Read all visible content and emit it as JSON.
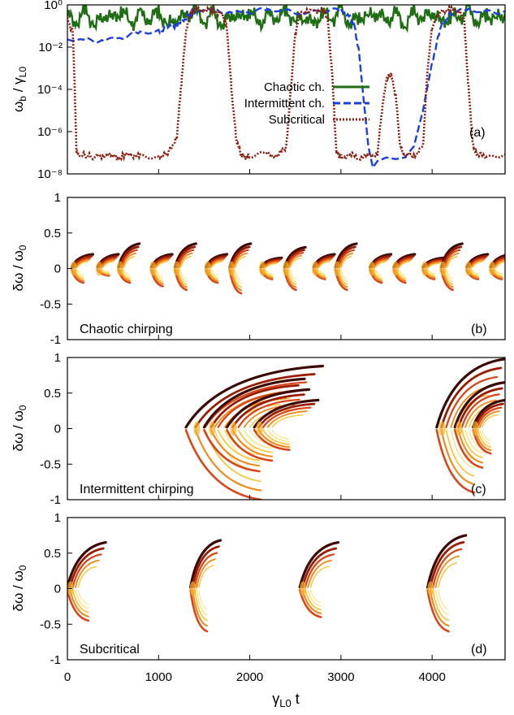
{
  "figure": {
    "xlabel": "γ",
    "xlabel_sub": "L0",
    "xlabel_tail": " t",
    "xticks": [
      "0",
      "1000",
      "2000",
      "3000",
      "4000"
    ]
  },
  "chart_data": [
    {
      "type": "line",
      "panel_tag": "(a)",
      "yscale": "log",
      "ylabel": "ω_b / γ_L0",
      "xlim": [
        0,
        4800
      ],
      "ylim": [
        1e-08,
        1
      ],
      "yticks": [
        "10⁰",
        "10⁻²",
        "10⁻⁴",
        "10⁻⁶",
        "10⁻⁸"
      ],
      "legend_position": "center-right",
      "series": [
        {
          "name": "Chaotic ch.",
          "color": "#1f6e14",
          "style": "solid",
          "x": [
            0,
            100,
            200,
            300,
            400,
            500,
            600,
            700,
            800,
            900,
            1000,
            1100,
            1200,
            1300,
            1400,
            1500,
            1600,
            1700,
            1800,
            1900,
            2000,
            2100,
            2200,
            2300,
            2400,
            2500,
            2600,
            2700,
            2800,
            2900,
            3000,
            3100,
            3200,
            3300,
            3400,
            3500,
            3600,
            3700,
            3800,
            3900,
            4000,
            4100,
            4200,
            4300,
            4400,
            4500,
            4600,
            4700,
            4800
          ],
          "y": [
            0.3,
            0.15,
            0.5,
            0.1,
            0.4,
            0.2,
            0.6,
            0.12,
            0.35,
            0.2,
            0.5,
            0.09,
            0.3,
            0.25,
            0.55,
            0.15,
            0.4,
            0.1,
            0.45,
            0.2,
            0.6,
            0.12,
            0.3,
            0.25,
            0.5,
            0.15,
            0.35,
            0.1,
            0.45,
            0.2,
            0.55,
            0.12,
            0.3,
            0.25,
            0.5,
            0.15,
            0.4,
            0.1,
            0.45,
            0.2,
            0.6,
            0.12,
            0.3,
            0.25,
            0.5,
            0.15,
            0.35,
            0.2,
            0.4
          ]
        },
        {
          "name": "Intermittent ch.",
          "color": "#1a3fe0",
          "style": "dashed",
          "x": [
            0,
            200,
            400,
            600,
            800,
            1000,
            1100,
            1200,
            1300,
            1350,
            1400,
            1600,
            1800,
            2000,
            2200,
            2400,
            2600,
            2800,
            3000,
            3100,
            3150,
            3200,
            3250,
            3300,
            3350,
            3400,
            3500,
            3600,
            3700,
            3800,
            3900,
            4000,
            4100,
            4200,
            4400,
            4600,
            4800
          ],
          "y": [
            0.02,
            0.02,
            0.025,
            0.03,
            0.04,
            0.06,
            0.08,
            0.12,
            0.2,
            0.35,
            0.5,
            0.5,
            0.5,
            0.5,
            0.5,
            0.5,
            0.5,
            0.5,
            0.5,
            0.3,
            0.1,
            0.005,
            3e-05,
            2e-07,
            2e-08,
            4e-08,
            6e-08,
            5e-08,
            6e-08,
            2e-07,
            1e-05,
            0.002,
            0.1,
            0.4,
            0.5,
            0.5,
            0.5
          ]
        },
        {
          "name": "Subcritical",
          "color": "#8a1e10",
          "style": "dotted",
          "x": [
            0,
            60,
            80,
            100,
            140,
            300,
            400,
            500,
            560,
            620,
            700,
            800,
            1000,
            1100,
            1200,
            1250,
            1300,
            1350,
            1400,
            1500,
            1600,
            1700,
            1750,
            1800,
            1850,
            1900,
            1950,
            2000,
            2200,
            2300,
            2400,
            2450,
            2500,
            2550,
            2700,
            2800,
            2850,
            2900,
            2950,
            3000,
            3100,
            3200,
            3300,
            3400,
            3450,
            3500,
            3550,
            3600,
            3650,
            3700,
            3800,
            3900,
            3950,
            4000,
            4100,
            4200,
            4300,
            4350,
            4400,
            4450,
            4500,
            4600,
            4800
          ],
          "y": [
            0.2,
            0.05,
            0.0001,
            1e-07,
            8e-08,
            6e-08,
            8e-08,
            7e-08,
            6e-08,
            7e-08,
            8e-08,
            6e-08,
            7e-08,
            8e-08,
            6e-07,
            0.0002,
            0.05,
            0.4,
            0.6,
            0.6,
            0.5,
            0.4,
            0.08,
            0.0001,
            5e-07,
            8e-08,
            6e-08,
            7e-08,
            8e-08,
            7e-08,
            2e-07,
            0.0001,
            0.05,
            0.4,
            0.55,
            0.5,
            0.3,
            0.001,
            1e-07,
            6e-08,
            8e-08,
            6e-08,
            7e-08,
            9e-08,
            1e-05,
            0.0003,
            0.0005,
            5e-05,
            2e-07,
            8e-08,
            7e-08,
            2e-07,
            0.001,
            0.1,
            0.5,
            0.6,
            0.5,
            0.2,
            0.0001,
            2e-07,
            8e-08,
            7e-08,
            8e-08
          ]
        }
      ]
    },
    {
      "type": "scatter",
      "panel_tag": "(b)",
      "label": "Chaotic chirping",
      "ylabel": "δω / ω_0",
      "xlim": [
        0,
        4800
      ],
      "ylim": [
        -1,
        1
      ],
      "yticks": [
        "1",
        "0.5",
        "0",
        "-0.5",
        "-1"
      ],
      "events": [
        {
          "t": 50,
          "up": 0.2,
          "down": -0.2
        },
        {
          "t": 330,
          "up": 0.2,
          "down": -0.1
        },
        {
          "t": 560,
          "up": 0.35,
          "down": -0.2
        },
        {
          "t": 920,
          "up": 0.2,
          "down": -0.25
        },
        {
          "t": 1180,
          "up": 0.35,
          "down": -0.3
        },
        {
          "t": 1520,
          "up": 0.2,
          "down": -0.2
        },
        {
          "t": 1780,
          "up": 0.35,
          "down": -0.35
        },
        {
          "t": 2120,
          "up": 0.15,
          "down": -0.15
        },
        {
          "t": 2380,
          "up": 0.3,
          "down": -0.3
        },
        {
          "t": 2700,
          "up": 0.2,
          "down": -0.15
        },
        {
          "t": 2940,
          "up": 0.35,
          "down": -0.3
        },
        {
          "t": 3320,
          "up": 0.2,
          "down": -0.2
        },
        {
          "t": 3580,
          "up": 0.2,
          "down": -0.2
        },
        {
          "t": 3900,
          "up": 0.15,
          "down": -0.15
        },
        {
          "t": 4100,
          "up": 0.35,
          "down": -0.3
        },
        {
          "t": 4380,
          "up": 0.2,
          "down": -0.15
        },
        {
          "t": 4640,
          "up": 0.2,
          "down": -0.15
        }
      ]
    },
    {
      "type": "scatter",
      "panel_tag": "(c)",
      "label": "Intermittent chirping",
      "ylabel": "δω / ω_0",
      "xlim": [
        0,
        4800
      ],
      "ylim": [
        -1,
        1
      ],
      "yticks": [
        "1",
        "0.5",
        "0",
        "-0.5",
        "-1"
      ],
      "events": [
        {
          "t": 1300,
          "up": 0.88,
          "down": -1.0,
          "dur": 1500
        },
        {
          "t": 1500,
          "up": 0.7,
          "down": -0.6,
          "dur": 1100
        },
        {
          "t": 1750,
          "up": 0.55,
          "down": -0.45,
          "dur": 900
        },
        {
          "t": 2050,
          "up": 0.4,
          "down": -0.3,
          "dur": 700
        },
        {
          "t": 4050,
          "up": 0.98,
          "down": -0.9,
          "dur": 750
        },
        {
          "t": 4250,
          "up": 0.65,
          "down": -0.55,
          "dur": 550
        },
        {
          "t": 4450,
          "up": 0.4,
          "down": -0.35,
          "dur": 350
        }
      ]
    },
    {
      "type": "scatter",
      "panel_tag": "(d)",
      "label": "Subcritical",
      "ylabel": "δω / ω_0",
      "xlim": [
        0,
        4800
      ],
      "ylim": [
        -1,
        1
      ],
      "yticks": [
        "1",
        "0.5",
        "0",
        "-0.5",
        "-1"
      ],
      "events": [
        {
          "t": 0,
          "up": 0.65,
          "down": -0.45,
          "dur": 420
        },
        {
          "t": 1350,
          "up": 0.68,
          "down": -0.6,
          "dur": 330
        },
        {
          "t": 2550,
          "up": 0.65,
          "down": -0.4,
          "dur": 420
        },
        {
          "t": 3950,
          "up": 0.75,
          "down": -0.6,
          "dur": 420
        }
      ]
    }
  ]
}
